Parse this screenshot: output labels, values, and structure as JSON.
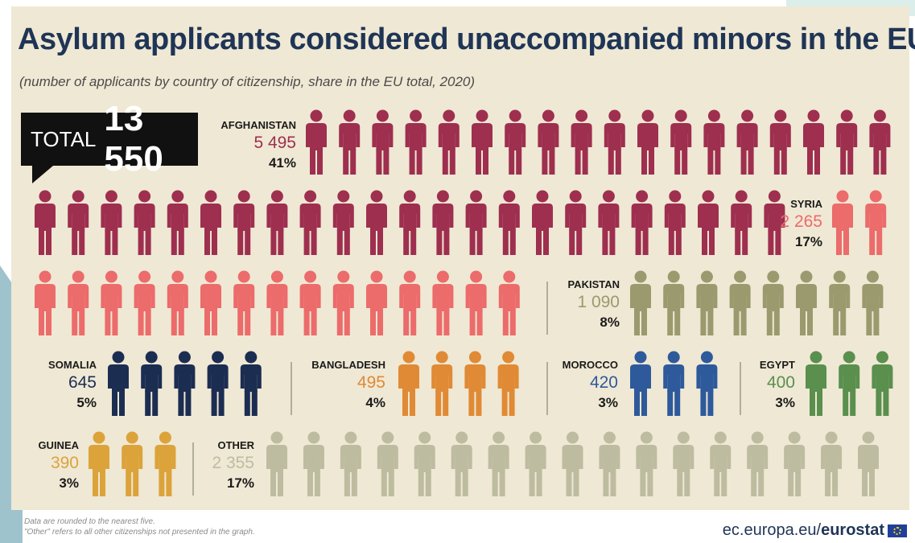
{
  "title": "Asylum applicants considered unaccompanied minors in the EU",
  "subtitle": "(number of applicants by country of citizenship, share in the EU total, 2020)",
  "total": {
    "label": "TOTAL",
    "value": "13 550"
  },
  "footnote": [
    "Data are rounded to the nearest five.",
    "\"Other\" refers to all other citizenships not presented in the graph."
  ],
  "source": {
    "prefix": "ec.europa.eu/",
    "brand": "eurostat"
  },
  "colors": {
    "Afghanistan": "#9e2f4f",
    "Syria": "#ec6b6b",
    "Pakistan": "#9a9a6e",
    "Somalia": "#1c2d52",
    "Bangladesh": "#e08a35",
    "Morocco": "#2e5a9c",
    "Egypt": "#5a8f4e",
    "Guinea": "#dca33b",
    "Other": "#bdbca0"
  },
  "chart_data": {
    "type": "pictogram",
    "title": "Asylum applicants considered unaccompanied minors in the EU",
    "subtitle": "(number of applicants by country of citizenship, share in the EU total, 2020)",
    "total": 13550,
    "categories": [
      "AFGHANISTAN",
      "SYRIA",
      "PAKISTAN",
      "SOMALIA",
      "BANGLADESH",
      "MOROCCO",
      "EGYPT",
      "GUINEA",
      "OTHER"
    ],
    "values": [
      5495,
      2265,
      1090,
      645,
      495,
      420,
      400,
      390,
      2355
    ],
    "value_labels": [
      "5 495",
      "2 265",
      "1 090",
      "645",
      "495",
      "420",
      "400",
      "390",
      "2 355"
    ],
    "shares": [
      "41%",
      "17%",
      "8%",
      "5%",
      "4%",
      "3%",
      "3%",
      "3%",
      "17%"
    ],
    "icons": [
      41,
      17,
      8,
      5,
      4,
      3,
      3,
      3,
      17
    ]
  }
}
